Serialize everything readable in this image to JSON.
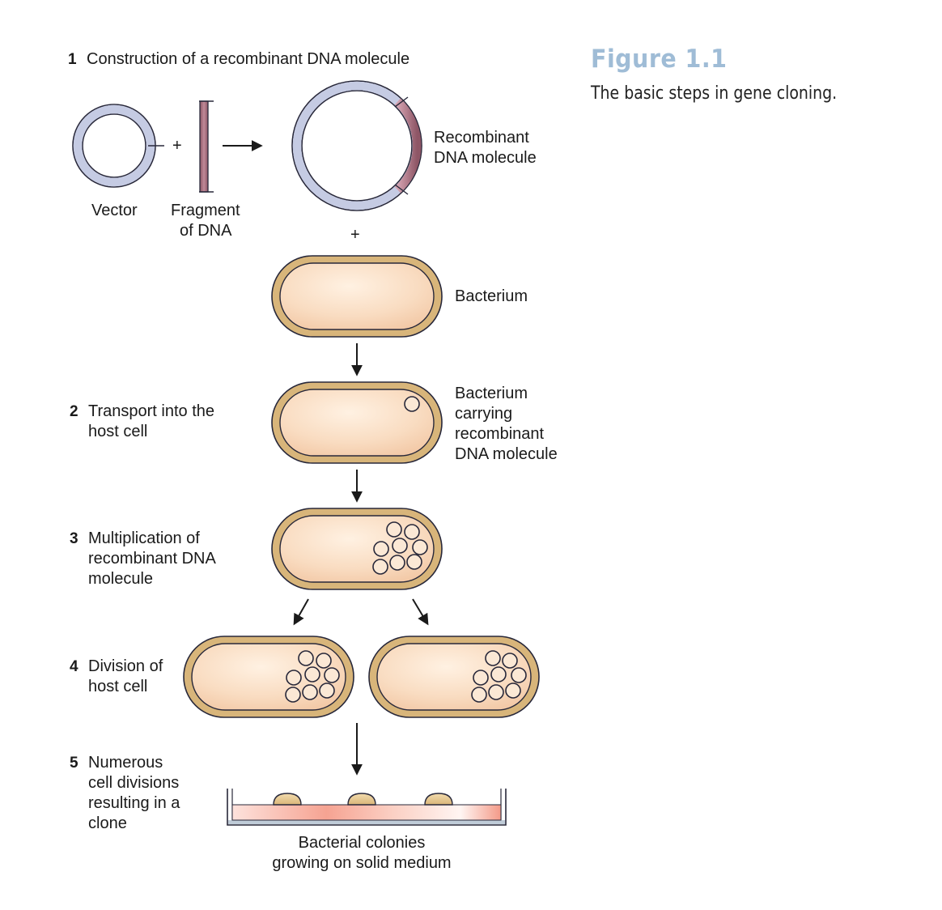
{
  "figure": {
    "title": "Figure 1.1",
    "caption": "The basic steps in gene cloning."
  },
  "steps": [
    {
      "number": "1",
      "lines": [
        "Construction of a recombinant DNA molecule"
      ]
    },
    {
      "number": "2",
      "lines": [
        "Transport into the",
        "host cell"
      ]
    },
    {
      "number": "3",
      "lines": [
        "Multiplication of",
        "recombinant DNA",
        "molecule"
      ]
    },
    {
      "number": "4",
      "lines": [
        "Division of",
        "host cell"
      ]
    },
    {
      "number": "5",
      "lines": [
        "Numerous",
        "cell divisions",
        "resulting in a",
        "clone"
      ]
    }
  ],
  "labels": {
    "vector": "Vector",
    "fragment": [
      "Fragment",
      "of DNA"
    ],
    "recombinant": [
      "Recombinant",
      "DNA molecule"
    ],
    "bacterium": "Bacterium",
    "bacterium_carrying": [
      "Bacterium",
      "carrying",
      "recombinant",
      "DNA molecule"
    ],
    "colonies": [
      "Bacterial colonies",
      "growing on solid medium"
    ],
    "plus": "+"
  },
  "colors": {
    "plasmid_ring": "#c5cbe3",
    "fragment": "#a86d7d",
    "cell_wall": "#d8b57a",
    "cell_interior": "#f7d6b8",
    "medium": "#f5a090",
    "dish": "#c0ccd8",
    "colony": "#e6c48b",
    "title_blue": "#9fbcd6"
  }
}
